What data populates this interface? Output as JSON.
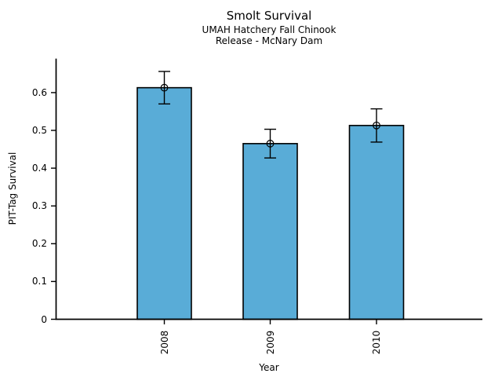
{
  "chart_data": {
    "type": "bar",
    "title": "Smolt Survival",
    "subtitle_lines": [
      "UMAH Hatchery Fall Chinook",
      "Release - McNary Dam"
    ],
    "xlabel": "Year",
    "ylabel": "PIT-Tag Survival",
    "categories": [
      "2008",
      "2009",
      "2010"
    ],
    "values": [
      0.613,
      0.465,
      0.513
    ],
    "error_bars": [
      0.043,
      0.038,
      0.044
    ],
    "yticks": {
      "values": [
        0,
        0.1,
        0.2,
        0.3,
        0.4,
        0.5,
        0.6
      ],
      "labels": [
        "0",
        "0.1",
        "0.2",
        "0.3",
        "0.4",
        "0.5",
        "0.6"
      ]
    },
    "ylim": [
      0,
      0.69
    ],
    "grid": false,
    "legend_position": "none",
    "marker": "open-circle",
    "colors": {
      "bar_fill": "#59ACD7",
      "bar_edge": "#000000",
      "axis": "#000000",
      "text": "#000000",
      "background": "#FFFFFF"
    }
  }
}
